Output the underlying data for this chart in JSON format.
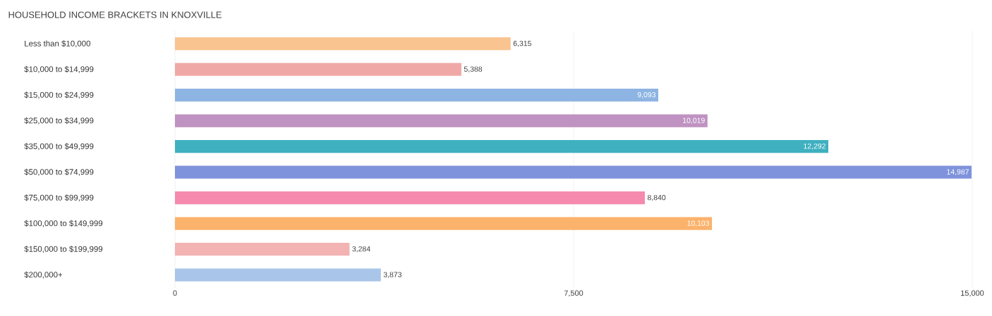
{
  "chart_data": {
    "type": "bar",
    "orientation": "horizontal",
    "title": "HOUSEHOLD INCOME BRACKETS IN KNOXVILLE",
    "categories": [
      "Less than $10,000",
      "$10,000 to $14,999",
      "$15,000 to $24,999",
      "$25,000 to $34,999",
      "$35,000 to $49,999",
      "$50,000 to $74,999",
      "$75,000 to $99,999",
      "$100,000 to $149,999",
      "$150,000 to $199,999",
      "$200,000+"
    ],
    "values": [
      6315,
      5388,
      9093,
      10019,
      12292,
      14987,
      8840,
      10103,
      3284,
      3873
    ],
    "value_labels": [
      "6,315",
      "5,388",
      "9,093",
      "10,019",
      "12,292",
      "14,987",
      "8,840",
      "10,103",
      "3,284",
      "3,873"
    ],
    "colors": [
      "#f9c490",
      "#f0a8a6",
      "#8db4e2",
      "#bf92c2",
      "#3fb0bf",
      "#7f93dc",
      "#f58aae",
      "#fbb26b",
      "#f2b3b2",
      "#a9c5e9"
    ],
    "xlim": [
      0,
      15000
    ],
    "xticks": [
      0,
      {
        "value": 7500,
        "label": "7,500"
      },
      {
        "value": 15000,
        "label": "15,000"
      }
    ],
    "grid": "x"
  }
}
